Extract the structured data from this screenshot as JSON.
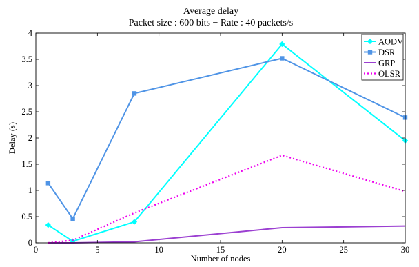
{
  "chart_data": {
    "type": "line",
    "title": "Average delay",
    "subtitle": "Packet size : 600 bits − Rate : 40 packets/s",
    "xlabel": "Number of nodes",
    "ylabel": "Delay (s)",
    "xlim": [
      0,
      30
    ],
    "ylim": [
      0,
      4
    ],
    "xticks": [
      0,
      5,
      10,
      15,
      20,
      25,
      30
    ],
    "yticks": [
      0,
      0.5,
      1,
      1.5,
      2,
      2.5,
      3,
      3.5,
      4
    ],
    "ytick_labels": [
      "0",
      "0.5",
      "1",
      "1.5",
      "2",
      "2.5",
      "3",
      "3.5",
      "4"
    ],
    "grid": false,
    "legend_position": "top-right",
    "series": [
      {
        "name": "AODV",
        "color": "#00ffff",
        "marker": "diamond",
        "dash": "solid",
        "x": [
          1,
          3,
          8,
          20,
          30
        ],
        "y": [
          0.34,
          0.03,
          0.4,
          3.79,
          1.95
        ]
      },
      {
        "name": "DSR",
        "color": "#4f94e6",
        "marker": "square",
        "dash": "solid",
        "x": [
          1,
          3,
          8,
          20,
          30
        ],
        "y": [
          1.14,
          0.46,
          2.85,
          3.52,
          2.39
        ]
      },
      {
        "name": "GRP",
        "color": "#9b3fd1",
        "marker": "none",
        "dash": "solid",
        "x": [
          1,
          3,
          8,
          20,
          30
        ],
        "y": [
          0.0,
          0.0,
          0.02,
          0.29,
          0.32
        ]
      },
      {
        "name": "OLSR",
        "color": "#ee00ee",
        "marker": "none",
        "dash": "dotted",
        "x": [
          1,
          3,
          8,
          20,
          30
        ],
        "y": [
          0.0,
          0.05,
          0.57,
          1.67,
          0.98
        ]
      }
    ]
  }
}
